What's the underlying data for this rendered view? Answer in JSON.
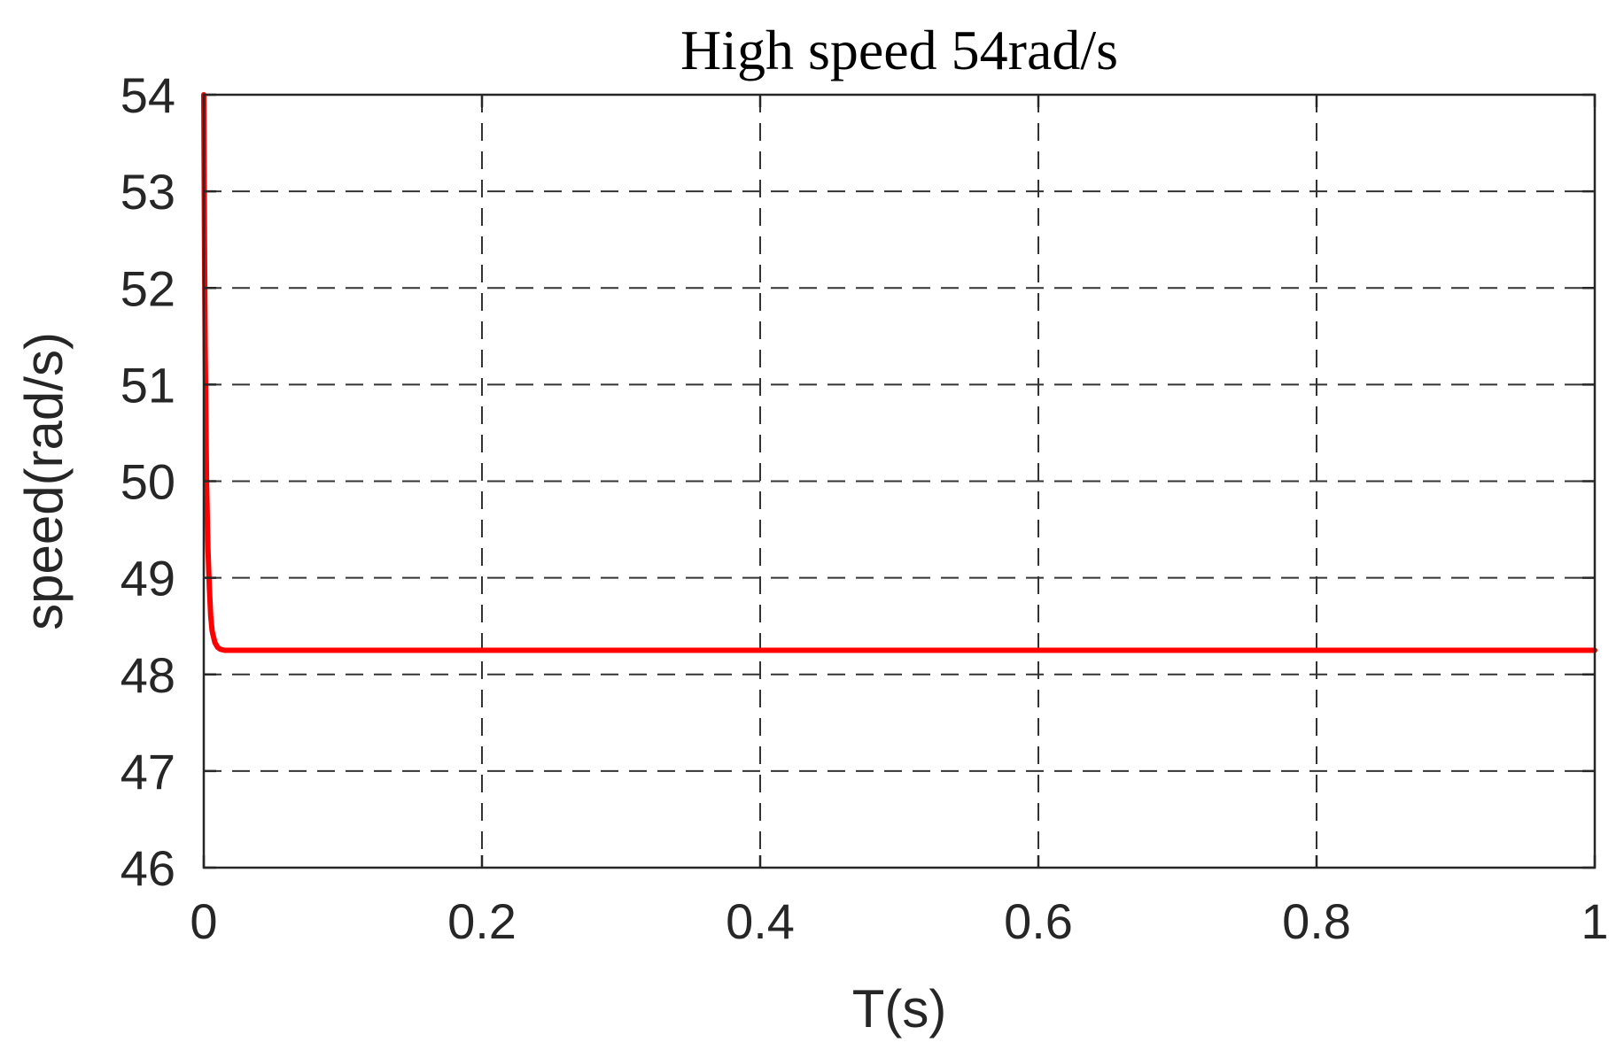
{
  "chart_data": {
    "type": "line",
    "title": "High speed 54rad/s",
    "xlabel": "T(s)",
    "ylabel": "speed(rad/s)",
    "xlim": [
      0,
      1
    ],
    "ylim": [
      46,
      54
    ],
    "x_ticks": [
      "0",
      "0.2",
      "0.4",
      "0.6",
      "0.8",
      "1"
    ],
    "y_ticks": [
      "46",
      "47",
      "48",
      "49",
      "50",
      "51",
      "52",
      "53",
      "54"
    ],
    "grid": true,
    "grid_style": "dashed",
    "series": [
      {
        "color": "#ff0000",
        "x": [
          0,
          0.0005,
          0.001,
          0.002,
          0.003,
          0.004,
          0.005,
          0.006,
          0.008,
          0.01,
          0.012,
          0.015,
          0.02,
          0.05,
          0.1,
          0.2,
          0.4,
          0.6,
          0.8,
          1.0
        ],
        "y": [
          54,
          52.5,
          51.4,
          50.0,
          49.3,
          48.9,
          48.6,
          48.45,
          48.33,
          48.28,
          48.26,
          48.25,
          48.25,
          48.25,
          48.25,
          48.25,
          48.25,
          48.25,
          48.25,
          48.25
        ]
      }
    ]
  }
}
